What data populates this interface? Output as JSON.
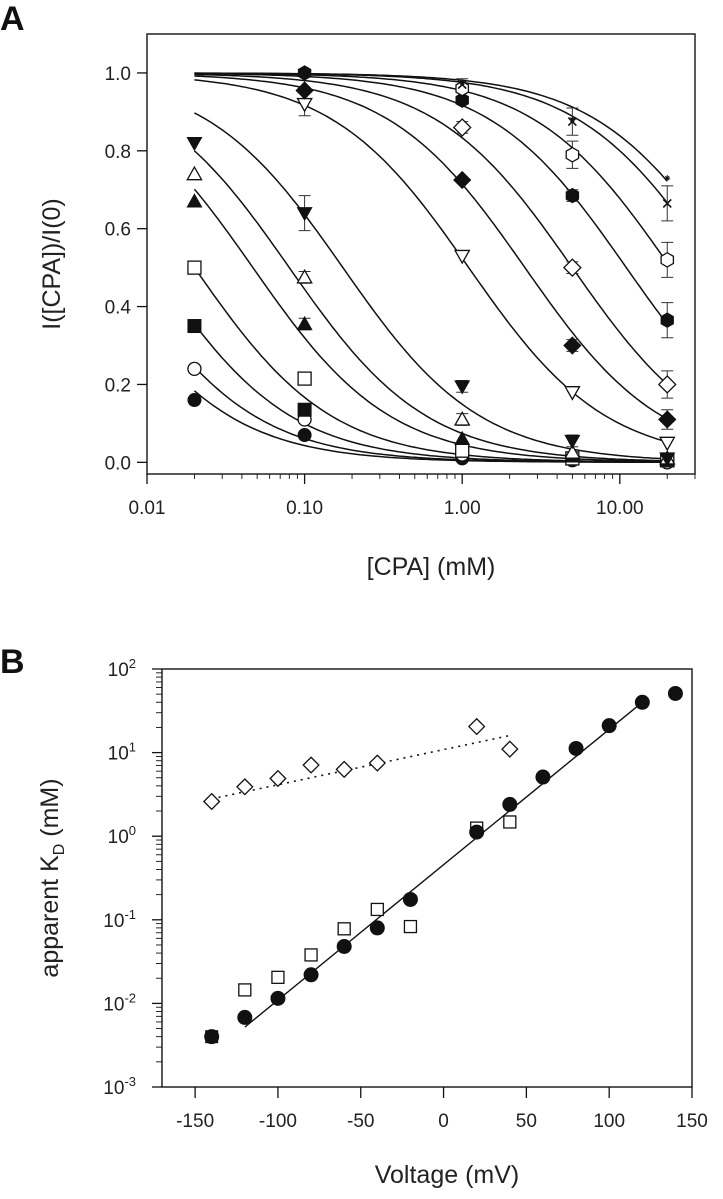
{
  "chart_data": [
    {
      "panel": "A",
      "type": "scatter",
      "title": "",
      "xlabel": "[CPA] (mM)",
      "ylabel": "I([CPA])/I(0)",
      "xscale": "log",
      "xlim": [
        0.01,
        30
      ],
      "ylim": [
        -0.03,
        1.1
      ],
      "xticks": [
        0.01,
        0.1,
        1,
        10
      ],
      "xtick_labels": [
        "0.01",
        "0.10",
        "1.00",
        "10.00"
      ],
      "yticks": [
        0.0,
        0.2,
        0.4,
        0.6,
        0.8,
        1.0
      ],
      "ytick_labels": [
        "0.0",
        "0.2",
        "0.4",
        "0.6",
        "0.8",
        "1.0"
      ],
      "grid": false,
      "legend": "none",
      "x": [
        0.02,
        0.1,
        1,
        5,
        20
      ],
      "series": [
        {
          "name": "filled-circle",
          "marker": "circle-filled",
          "kd": 0.0045,
          "values": [
            0.16,
            0.07,
            0.01,
            0.005,
            0.0
          ]
        },
        {
          "name": "open-circle",
          "marker": "circle-open",
          "kd": 0.0065,
          "values": [
            0.24,
            0.11,
            0.02,
            0.01,
            0.0
          ]
        },
        {
          "name": "filled-square",
          "marker": "square-filled",
          "kd": 0.011,
          "values": [
            0.35,
            0.135,
            0.03,
            0.01,
            0.005
          ]
        },
        {
          "name": "open-square",
          "marker": "square-open",
          "kd": 0.02,
          "values": [
            0.5,
            0.215,
            0.03,
            0.01,
            0.005
          ]
        },
        {
          "name": "filled-triangle-up",
          "marker": "triangle-up-filled",
          "kd": 0.047,
          "values": [
            0.67,
            0.355,
            0.06,
            0.015,
            0.005
          ]
        },
        {
          "name": "open-triangle-up",
          "marker": "triangle-up-open",
          "kd": 0.08,
          "values": [
            0.74,
            0.475,
            0.11,
            0.025,
            0.01
          ]
        },
        {
          "name": "filled-triangle-down",
          "marker": "triangle-down-filled",
          "kd": 0.175,
          "values": [
            0.82,
            0.64,
            0.195,
            0.055,
            0.01
          ]
        },
        {
          "name": "open-triangle-down",
          "marker": "triangle-down-open",
          "kd": 1.1,
          "values": [
            null,
            0.92,
            0.53,
            0.18,
            0.05
          ]
        },
        {
          "name": "filled-diamond",
          "marker": "diamond-filled",
          "kd": 2.5,
          "values": [
            null,
            0.955,
            0.725,
            0.3,
            0.11
          ]
        },
        {
          "name": "open-diamond",
          "marker": "diamond-open",
          "kd": 5.0,
          "values": [
            null,
            null,
            0.86,
            0.5,
            0.2
          ]
        },
        {
          "name": "filled-hexagon",
          "marker": "hexagon-filled",
          "kd": 11.0,
          "values": [
            null,
            1.0,
            0.93,
            0.685,
            0.365
          ]
        },
        {
          "name": "open-hexagon",
          "marker": "hexagon-open",
          "kd": 21.0,
          "values": [
            null,
            null,
            0.96,
            0.79,
            0.52
          ]
        },
        {
          "name": "cross",
          "marker": "x",
          "kd": 40.0,
          "values": [
            null,
            null,
            0.97,
            0.875,
            0.665
          ]
        },
        {
          "name": "star",
          "marker": "star",
          "kd": 52.0,
          "values": [
            null,
            null,
            0.975,
            0.88,
            0.73
          ]
        }
      ],
      "error_bars": [
        {
          "series": "open-triangle-down",
          "x": 0.1,
          "y": 0.92,
          "err": 0.03
        },
        {
          "series": "filled-triangle-down",
          "x": 0.1,
          "y": 0.64,
          "err": 0.045
        },
        {
          "series": "filled-hexagon",
          "x": 20,
          "y": 0.365,
          "err": 0.045
        },
        {
          "series": "open-hexagon",
          "x": 20,
          "y": 0.52,
          "err": 0.045
        },
        {
          "series": "open-hexagon",
          "x": 5,
          "y": 0.79,
          "err": 0.035
        },
        {
          "series": "cross",
          "x": 20,
          "y": 0.665,
          "err": 0.045
        },
        {
          "series": "cross",
          "x": 5,
          "y": 0.875,
          "err": 0.035
        },
        {
          "series": "open-diamond",
          "x": 20,
          "y": 0.2,
          "err": 0.035
        },
        {
          "series": "filled-diamond",
          "x": 20,
          "y": 0.11,
          "err": 0.025
        },
        {
          "series": "open-triangle-up",
          "x": 0.1,
          "y": 0.475,
          "err": 0.015
        },
        {
          "series": "filled-triangle-up",
          "x": 0.1,
          "y": 0.355,
          "err": 0.015
        },
        {
          "series": "open-square",
          "x": 0.1,
          "y": 0.215,
          "err": 0.015
        },
        {
          "series": "open-hexagon",
          "x": 1,
          "y": 0.96,
          "err": 0.025
        },
        {
          "series": "filled-triangle-down",
          "x": 1,
          "y": 0.195,
          "err": 0.015
        },
        {
          "series": "open-triangle-up",
          "x": 1,
          "y": 0.11,
          "err": 0.015
        },
        {
          "series": "open-diamond",
          "x": 1,
          "y": 0.86,
          "err": 0.015
        },
        {
          "series": "open-diamond",
          "x": 5,
          "y": 0.5,
          "err": 0.015
        },
        {
          "series": "filled-hexagon",
          "x": 5,
          "y": 0.685,
          "err": 0.015
        },
        {
          "series": "filled-diamond",
          "x": 5,
          "y": 0.3,
          "err": 0.015
        },
        {
          "series": "filled-triangle-down",
          "x": 5,
          "y": 0.055,
          "err": 0.015
        }
      ],
      "fit": "y = Kd / (Kd + x), one curve per series (x from 0.02 to 20)"
    },
    {
      "panel": "B",
      "type": "scatter",
      "title": "",
      "xlabel": "Voltage (mV)",
      "ylabel": "apparent K_D (mM)",
      "yscale": "log",
      "xlim": [
        -170,
        150
      ],
      "ylim": [
        0.001,
        100
      ],
      "xticks": [
        -150,
        -100,
        -50,
        0,
        50,
        100,
        150
      ],
      "xtick_labels": [
        "-150",
        "-100",
        "-50",
        "0",
        "50",
        "100",
        "150"
      ],
      "yticks": [
        0.001,
        0.01,
        0.1,
        1,
        10,
        100
      ],
      "ytick_labels": [
        {
          "base": "10",
          "exp": "-3"
        },
        {
          "base": "10",
          "exp": "-2"
        },
        {
          "base": "10",
          "exp": "-1"
        },
        {
          "base": "10",
          "exp": "0"
        },
        {
          "base": "10",
          "exp": "1"
        },
        {
          "base": "10",
          "exp": "2"
        }
      ],
      "grid": false,
      "legend": "none",
      "series": [
        {
          "name": "filled-circles",
          "marker": "circle-filled",
          "x": [
            -140,
            -120,
            -100,
            -80,
            -60,
            -40,
            -20,
            20,
            40,
            60,
            80,
            100,
            120,
            140
          ],
          "values": [
            0.004,
            0.0068,
            0.0115,
            0.022,
            0.048,
            0.08,
            0.175,
            1.12,
            2.4,
            5.1,
            11.2,
            21.0,
            40.0,
            51.0
          ]
        },
        {
          "name": "open-squares",
          "marker": "square-open",
          "x": [
            -140,
            -120,
            -100,
            -80,
            -60,
            -40,
            -20,
            20,
            40
          ],
          "values": [
            0.004,
            0.0145,
            0.0205,
            0.038,
            0.078,
            0.133,
            0.083,
            1.25,
            1.48
          ]
        },
        {
          "name": "open-diamonds",
          "marker": "diamond-open",
          "x": [
            -140,
            -120,
            -100,
            -80,
            -60,
            -40,
            20,
            40
          ],
          "values": [
            2.6,
            3.9,
            4.9,
            7.1,
            6.3,
            7.5,
            20.5,
            11.0
          ]
        }
      ],
      "fits": [
        {
          "name": "solid-fit",
          "style": "solid",
          "x": [
            -120,
            120
          ],
          "values": [
            0.0052,
            40.0
          ]
        },
        {
          "name": "dotted-fit",
          "style": "dotted",
          "x": [
            -140,
            40
          ],
          "values": [
            2.8,
            16.0
          ]
        }
      ]
    }
  ],
  "labels": {
    "panel_a": "A",
    "panel_b": "B"
  }
}
